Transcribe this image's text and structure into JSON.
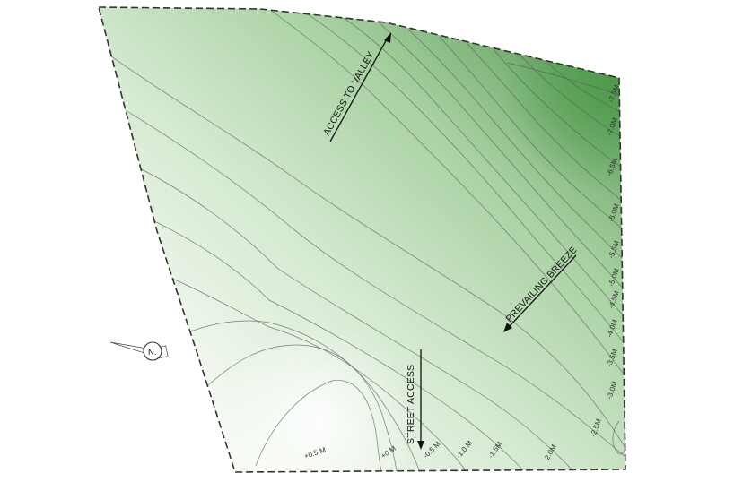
{
  "site_plan": {
    "annotations": {
      "access_to_valley": "ACCESS TO VALLEY",
      "prevailing_breeze": "PREVAILING BREEZE",
      "street_access": "STREET ACCESS"
    },
    "north_label": "N.",
    "contour_labels": {
      "p05": "+0.5 M",
      "p0": "+0 M",
      "m05": "-0.5 M",
      "m10": "-1.0 M",
      "m15": "-1.5M",
      "m20": "-2.0M",
      "m25": "-2.5M",
      "m30": "-3.0M",
      "m35": "-3.5M",
      "m40": "-4.0M",
      "m45": "-4.5M",
      "m50": "-5.0M",
      "m55": "-5.5M",
      "m60": "-6.0M",
      "m65": "-6.5M",
      "m70": "-7.0M",
      "m75": "-7.5M"
    },
    "colors": {
      "high_ground": "#f6faf4",
      "low_ground": "#5ea05b",
      "contour_line": "#4f5a4f",
      "boundary": "#333333"
    }
  }
}
